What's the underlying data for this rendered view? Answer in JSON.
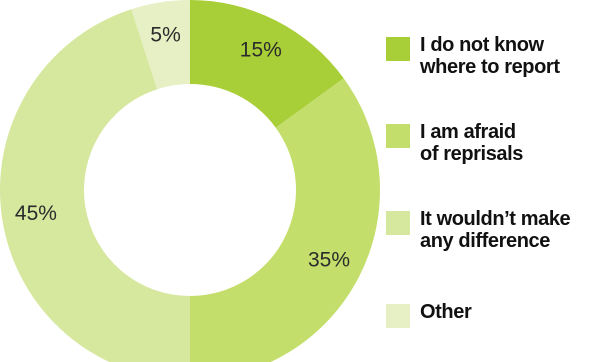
{
  "chart_data": {
    "type": "pie",
    "donut": true,
    "categories": [
      "I do not know\nwhere to report",
      "I am afraid\nof reprisals",
      "It wouldn’t make\nany difference",
      "Other"
    ],
    "values": [
      15,
      35,
      45,
      5
    ],
    "value_labels": [
      "15%",
      "35%",
      "45%",
      "5%"
    ],
    "colors": [
      "#a8cf38",
      "#c4de6c",
      "#d6e79e",
      "#e6f0c4"
    ],
    "start_angle": "12 o'clock",
    "direction": "clockwise",
    "legend": "right"
  }
}
